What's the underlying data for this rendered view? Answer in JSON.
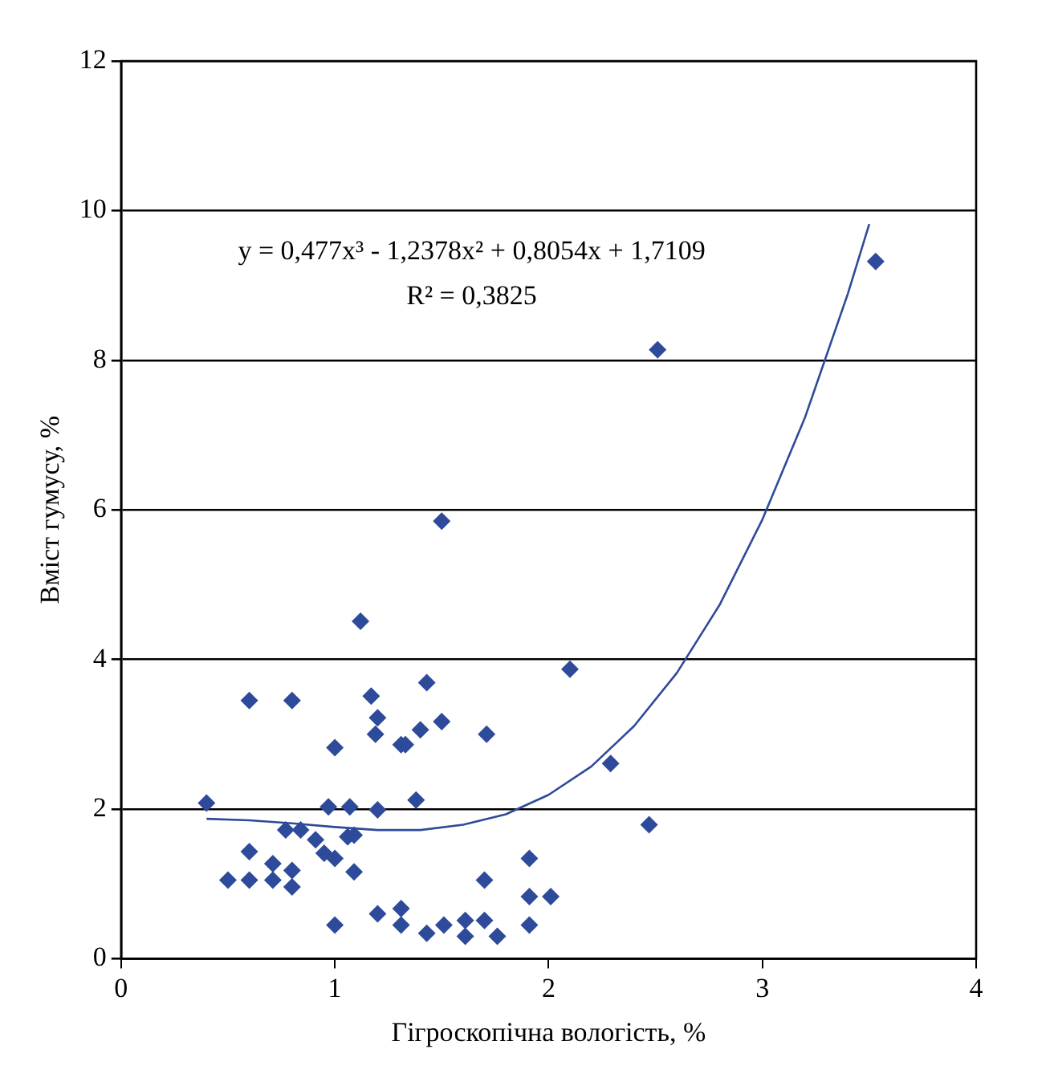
{
  "chart_data": {
    "type": "scatter",
    "xlabel": "Гігроскопічна вологість, %",
    "ylabel": "Вміст гумусу, %",
    "annotations": [
      "y = 0,477x³ - 1,2378x² + 0,8054x + 1,7109",
      "R² = 0,3825"
    ],
    "xlim": [
      0,
      4
    ],
    "xticks": [
      0,
      1,
      2,
      3,
      4
    ],
    "ylim": [
      0,
      12
    ],
    "yticks": [
      0,
      2,
      4,
      6,
      8,
      10,
      12
    ],
    "grid": "y",
    "marker": "diamond",
    "series": [
      {
        "color": "#2e4a9a",
        "x": [
          0.4,
          0.5,
          0.6,
          0.6,
          0.6,
          0.71,
          0.71,
          0.77,
          0.8,
          0.8,
          0.8,
          0.84,
          0.91,
          0.95,
          1.0,
          1.06,
          1.09,
          1.09,
          1.0,
          1.0,
          0.97,
          1.07,
          1.2,
          1.38,
          1.2,
          1.31,
          1.31,
          1.43,
          1.51,
          1.61,
          1.61,
          1.7,
          1.76,
          1.91,
          1.91,
          2.01,
          1.91,
          1.7,
          1.12,
          1.5,
          1.43,
          1.17,
          1.2,
          1.19,
          1.31,
          1.33,
          1.4,
          1.5,
          1.71,
          2.1,
          2.29,
          2.47,
          2.51,
          3.53
        ],
        "values": [
          2.08,
          1.05,
          3.45,
          1.05,
          1.43,
          1.27,
          1.05,
          1.72,
          1.18,
          0.96,
          3.45,
          1.72,
          1.59,
          1.41,
          1.34,
          1.63,
          1.65,
          1.16,
          0.45,
          2.82,
          2.03,
          2.03,
          1.99,
          2.12,
          0.6,
          0.67,
          0.45,
          0.34,
          0.45,
          0.3,
          0.51,
          0.51,
          0.3,
          0.45,
          0.83,
          0.83,
          1.34,
          1.05,
          4.51,
          5.85,
          3.69,
          3.51,
          3.22,
          3.0,
          2.86,
          2.86,
          3.06,
          3.17,
          3.0,
          3.87,
          2.61,
          1.79,
          8.14,
          9.32
        ]
      },
      {
        "type": "line",
        "color": "#2e4a9a",
        "marker": "none",
        "line_style": "solid",
        "x": [
          0.4,
          0.6,
          0.8,
          1.0,
          1.2,
          1.4,
          1.6,
          1.8,
          2.0,
          2.2,
          2.4,
          2.6,
          2.8,
          3.0,
          3.2,
          3.4,
          3.5
        ],
        "values": [
          1.87,
          1.85,
          1.81,
          1.76,
          1.72,
          1.72,
          1.79,
          1.93,
          2.19,
          2.57,
          3.11,
          3.82,
          4.73,
          5.87,
          7.24,
          8.89,
          9.82
        ]
      }
    ]
  }
}
